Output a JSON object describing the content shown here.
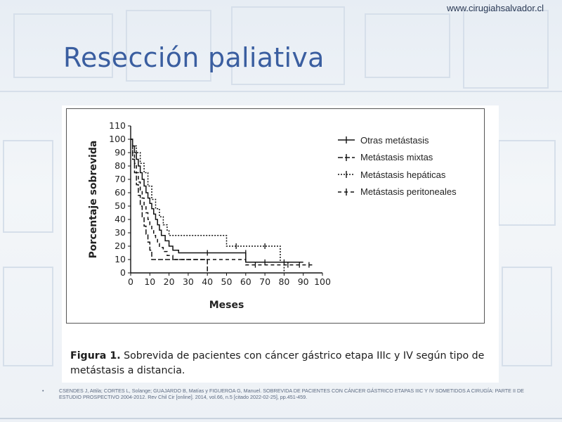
{
  "site": {
    "url": "www.cirugiahsalvador.cl"
  },
  "slide": {
    "title": "Resección paliativa"
  },
  "figure": {
    "caption_label": "Figura 1.",
    "caption_text": "Sobrevida de pacientes con cáncer gástrico etapa IIIc y IV según tipo de metástasis a distancia."
  },
  "reference": {
    "bullet": "•",
    "text": "CSENDES J, Attila; CORTES L, Solange; GUAJARDO B, Matías  y  FIGUEROA G, Manuel. SOBREVIDA DE PACIENTES CON CÁNCER GÁSTRICO ETAPAS IIIC Y IV SOMETIDOS A CIRUGÍA: PARTE II DE ESTUDIO PROSPECTIVO 2004-2012. Rev Chil Cir [online]. 2014, vol.66, n.5 [citado  2022-02-25], pp.451-459."
  },
  "chart_data": {
    "type": "line",
    "step": true,
    "title": "",
    "xlabel": "Meses",
    "ylabel": "Porcentaje sobrevida",
    "xlim": [
      0,
      100
    ],
    "ylim": [
      0,
      110
    ],
    "xticks": [
      0,
      10,
      20,
      30,
      40,
      50,
      60,
      70,
      80,
      90,
      100
    ],
    "yticks": [
      0,
      10,
      20,
      30,
      40,
      50,
      60,
      70,
      80,
      90,
      100,
      110
    ],
    "grid": false,
    "legend_position": "top-right",
    "series": [
      {
        "name": "Otras metástasis",
        "color": "#111111",
        "dash": "none",
        "points": [
          [
            0,
            100
          ],
          [
            1,
            95
          ],
          [
            2,
            90
          ],
          [
            3,
            85
          ],
          [
            4,
            80
          ],
          [
            5,
            75
          ],
          [
            6,
            70
          ],
          [
            7,
            65
          ],
          [
            8,
            60
          ],
          [
            9,
            56
          ],
          [
            10,
            52
          ],
          [
            11,
            48
          ],
          [
            12,
            44
          ],
          [
            13,
            40
          ],
          [
            14,
            36
          ],
          [
            15,
            32
          ],
          [
            16,
            28
          ],
          [
            18,
            24
          ],
          [
            20,
            20
          ],
          [
            22,
            17
          ],
          [
            25,
            15
          ],
          [
            30,
            15
          ],
          [
            40,
            15
          ],
          [
            50,
            15
          ],
          [
            60,
            15
          ],
          [
            60,
            8
          ],
          [
            90,
            8
          ]
        ],
        "censored": [
          [
            40,
            15
          ],
          [
            60,
            15
          ],
          [
            70,
            8
          ],
          [
            80,
            8
          ]
        ]
      },
      {
        "name": "Metástasis mixtas",
        "color": "#111111",
        "dash": "7,3",
        "points": [
          [
            0,
            100
          ],
          [
            1,
            85
          ],
          [
            2,
            75
          ],
          [
            3,
            66
          ],
          [
            4,
            58
          ],
          [
            5,
            50
          ],
          [
            6,
            42
          ],
          [
            7,
            35
          ],
          [
            8,
            29
          ],
          [
            9,
            23
          ],
          [
            10,
            17
          ],
          [
            11,
            10
          ],
          [
            20,
            10
          ],
          [
            40,
            10
          ],
          [
            40,
            0
          ]
        ],
        "censored": []
      },
      {
        "name": "Metástasis hepáticas",
        "color": "#111111",
        "dash": "2,2",
        "points": [
          [
            0,
            100
          ],
          [
            1,
            95
          ],
          [
            3,
            90
          ],
          [
            5,
            82
          ],
          [
            7,
            75
          ],
          [
            9,
            65
          ],
          [
            11,
            55
          ],
          [
            13,
            48
          ],
          [
            15,
            42
          ],
          [
            17,
            36
          ],
          [
            19,
            32
          ],
          [
            20,
            28
          ],
          [
            50,
            28
          ],
          [
            50,
            20
          ],
          [
            78,
            20
          ],
          [
            78,
            8
          ],
          [
            80,
            8
          ],
          [
            80,
            0
          ]
        ],
        "censored": [
          [
            55,
            20
          ],
          [
            70,
            20
          ]
        ]
      },
      {
        "name": "Metástasis peritoneales",
        "color": "#111111",
        "dash": "5,4",
        "points": [
          [
            0,
            100
          ],
          [
            1,
            90
          ],
          [
            2,
            82
          ],
          [
            3,
            75
          ],
          [
            4,
            68
          ],
          [
            5,
            62
          ],
          [
            6,
            56
          ],
          [
            7,
            50
          ],
          [
            8,
            45
          ],
          [
            9,
            40
          ],
          [
            10,
            36
          ],
          [
            11,
            32
          ],
          [
            12,
            28
          ],
          [
            13,
            25
          ],
          [
            14,
            22
          ],
          [
            15,
            19
          ],
          [
            17,
            16
          ],
          [
            19,
            13
          ],
          [
            22,
            10
          ],
          [
            30,
            10
          ],
          [
            40,
            10
          ],
          [
            50,
            10
          ],
          [
            60,
            10
          ],
          [
            60,
            6
          ],
          [
            95,
            6
          ]
        ],
        "censored": [
          [
            65,
            6
          ],
          [
            82,
            6
          ],
          [
            88,
            6
          ],
          [
            93,
            6
          ]
        ]
      }
    ]
  }
}
